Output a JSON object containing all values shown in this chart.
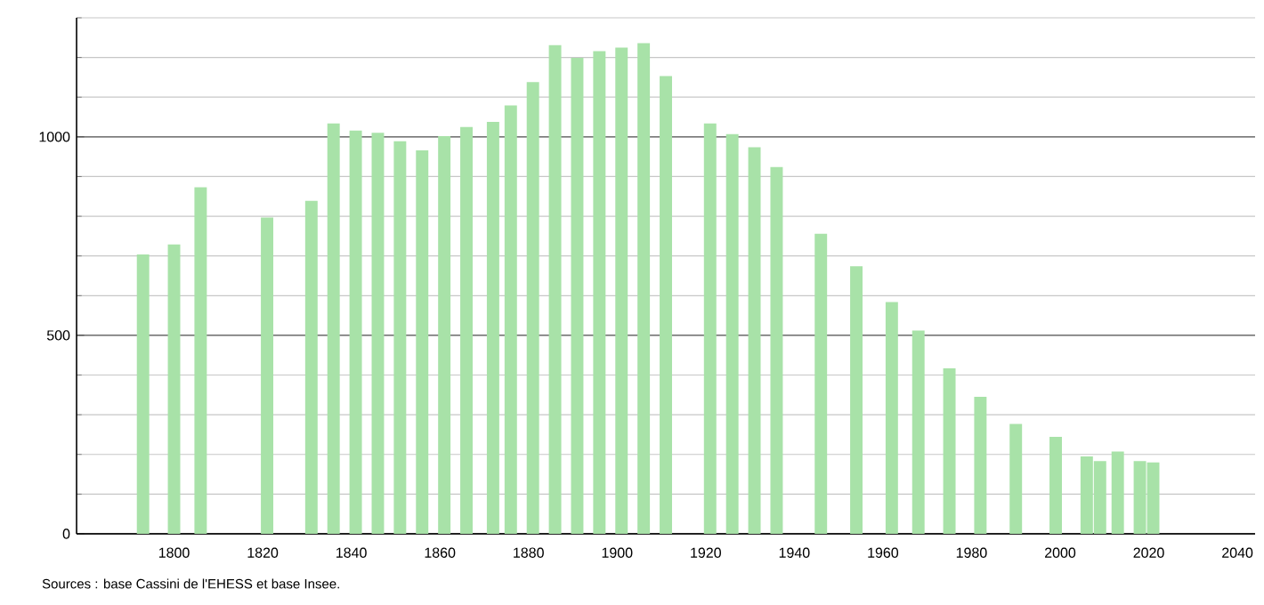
{
  "chart_data": {
    "type": "bar",
    "series": [
      {
        "color": "#a8e2a8",
        "x": [
          1793,
          1800,
          1806,
          1821,
          1831,
          1836,
          1841,
          1846,
          1851,
          1856,
          1861,
          1866,
          1872,
          1876,
          1881,
          1886,
          1891,
          1896,
          1901,
          1906,
          1911,
          1921,
          1926,
          1931,
          1936,
          1946,
          1954,
          1962,
          1968,
          1975,
          1982,
          1990,
          1999,
          2006,
          2009,
          2013,
          2018,
          2021
        ],
        "values": [
          704,
          729,
          873,
          797,
          839,
          1034,
          1016,
          1010,
          989,
          966,
          1002,
          1025,
          1038,
          1079,
          1138,
          1231,
          1199,
          1216,
          1225,
          1236,
          1153,
          1034,
          1007,
          974,
          924,
          756,
          674,
          584,
          512,
          417,
          345,
          277,
          244,
          195,
          183,
          207,
          183,
          180
        ]
      }
    ],
    "xlim": [
      1778,
      2044
    ],
    "xticks": [
      1800,
      1820,
      1840,
      1860,
      1880,
      1900,
      1920,
      1940,
      1960,
      1980,
      2000,
      2020,
      2040
    ],
    "ylim": [
      0,
      1300
    ],
    "yticks": [
      0,
      {
        "value": 100,
        "label": null
      },
      {
        "value": 200,
        "label": null
      },
      {
        "value": 300,
        "label": null
      },
      {
        "value": 400,
        "label": null
      },
      500,
      {
        "value": 600,
        "label": null
      },
      {
        "value": 700,
        "label": null
      },
      {
        "value": 800,
        "label": null
      },
      {
        "value": 900,
        "label": null
      },
      1000,
      {
        "value": 1100,
        "label": null
      },
      {
        "value": 1200,
        "label": null
      },
      {
        "value": 1300,
        "label": null
      }
    ],
    "grid": "y",
    "annotations": [
      "Sources : base Cassini de l'EHESS et base Insee."
    ]
  }
}
